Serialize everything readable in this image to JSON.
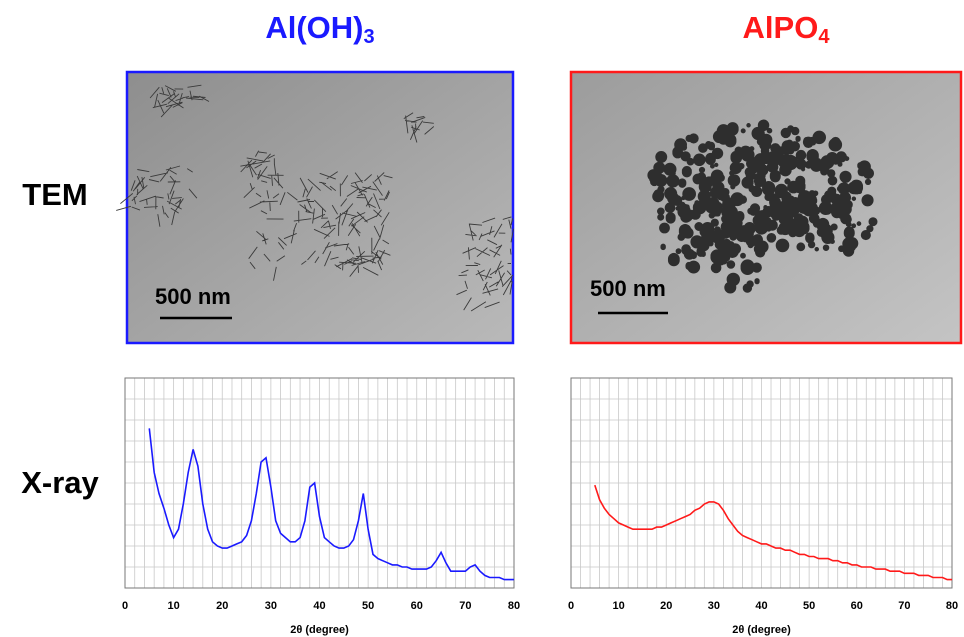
{
  "columns": [
    {
      "title": "Al(OH)",
      "subscript": "3",
      "scale_bar": "500 nm"
    },
    {
      "title": "AlPO",
      "subscript": "4",
      "scale_bar": "500 nm"
    }
  ],
  "rows": [
    "TEM",
    "X-ray"
  ],
  "chart_data": [
    {
      "type": "line",
      "color": "#1a1aff",
      "xlabel": "2θ (degree)",
      "xlim": [
        0,
        80
      ],
      "xticks": [
        0,
        10,
        20,
        30,
        40,
        50,
        60,
        70,
        80
      ],
      "xgrid": [
        0,
        2,
        4,
        6,
        8,
        10,
        12,
        14,
        16,
        18,
        20,
        22,
        24,
        26,
        28,
        30,
        32,
        34,
        36,
        38,
        40,
        42,
        44,
        46,
        48,
        50,
        52,
        54,
        56,
        58,
        60,
        62,
        64,
        66,
        68,
        70,
        72,
        74,
        76,
        78,
        80
      ],
      "ylim": [
        0,
        100
      ],
      "yticks": [
        0,
        10,
        20,
        30,
        40,
        50,
        60,
        70,
        80,
        90,
        100
      ],
      "ytick_labels": false,
      "grid": true,
      "x": [
        5,
        6,
        7,
        8,
        9,
        10,
        11,
        12,
        13,
        14,
        15,
        16,
        17,
        18,
        19,
        20,
        21,
        22,
        23,
        24,
        25,
        26,
        27,
        28,
        29,
        30,
        31,
        32,
        33,
        34,
        35,
        36,
        37,
        38,
        39,
        40,
        41,
        42,
        43,
        44,
        45,
        46,
        47,
        48,
        49,
        50,
        51,
        52,
        53,
        54,
        55,
        56,
        57,
        58,
        59,
        60,
        61,
        62,
        63,
        64,
        65,
        66,
        67,
        68,
        69,
        70,
        71,
        72,
        73,
        74,
        75,
        76,
        77,
        78,
        79,
        80
      ],
      "values": [
        76,
        55,
        45,
        38,
        30,
        24,
        28,
        40,
        55,
        66,
        58,
        40,
        28,
        22,
        20,
        19,
        19,
        20,
        21,
        22,
        25,
        32,
        45,
        60,
        62,
        48,
        32,
        26,
        24,
        22,
        22,
        24,
        32,
        48,
        50,
        34,
        24,
        22,
        20,
        19,
        19,
        20,
        23,
        32,
        45,
        28,
        16,
        14,
        13,
        12,
        11,
        11,
        10,
        10,
        9,
        9,
        9,
        9,
        10,
        13,
        17,
        12,
        8,
        8,
        8,
        8,
        10,
        11,
        8,
        6,
        5,
        5,
        5,
        4,
        4,
        4
      ]
    },
    {
      "type": "line",
      "color": "#ff1a1a",
      "xlabel": "2θ (degree)",
      "xlim": [
        0,
        80
      ],
      "xticks": [
        0,
        10,
        20,
        30,
        40,
        50,
        60,
        70,
        80
      ],
      "xgrid": [
        0,
        2,
        4,
        6,
        8,
        10,
        12,
        14,
        16,
        18,
        20,
        22,
        24,
        26,
        28,
        30,
        32,
        34,
        36,
        38,
        40,
        42,
        44,
        46,
        48,
        50,
        52,
        54,
        56,
        58,
        60,
        62,
        64,
        66,
        68,
        70,
        72,
        74,
        76,
        78,
        80
      ],
      "ylim": [
        0,
        100
      ],
      "yticks": [
        0,
        10,
        20,
        30,
        40,
        50,
        60,
        70,
        80,
        90,
        100
      ],
      "ytick_labels": false,
      "grid": true,
      "x": [
        5,
        6,
        7,
        8,
        9,
        10,
        11,
        12,
        13,
        14,
        15,
        16,
        17,
        18,
        19,
        20,
        21,
        22,
        23,
        24,
        25,
        26,
        27,
        28,
        29,
        30,
        31,
        32,
        33,
        34,
        35,
        36,
        37,
        38,
        39,
        40,
        41,
        42,
        43,
        44,
        45,
        46,
        47,
        48,
        49,
        50,
        51,
        52,
        53,
        54,
        55,
        56,
        57,
        58,
        59,
        60,
        61,
        62,
        63,
        64,
        65,
        66,
        67,
        68,
        69,
        70,
        71,
        72,
        73,
        74,
        75,
        76,
        77,
        78,
        79,
        80
      ],
      "values": [
        49,
        42,
        38,
        35,
        33,
        31,
        30,
        29,
        28,
        28,
        28,
        28,
        28,
        29,
        29,
        30,
        31,
        32,
        33,
        34,
        35,
        37,
        38,
        40,
        41,
        41,
        40,
        37,
        33,
        30,
        27,
        25,
        24,
        23,
        22,
        21,
        21,
        20,
        19,
        19,
        18,
        18,
        17,
        16,
        16,
        15,
        15,
        14,
        14,
        14,
        13,
        13,
        12,
        12,
        11,
        11,
        10,
        10,
        10,
        9,
        9,
        9,
        8,
        8,
        8,
        7,
        7,
        7,
        6,
        6,
        6,
        5,
        5,
        5,
        4,
        4
      ]
    }
  ]
}
